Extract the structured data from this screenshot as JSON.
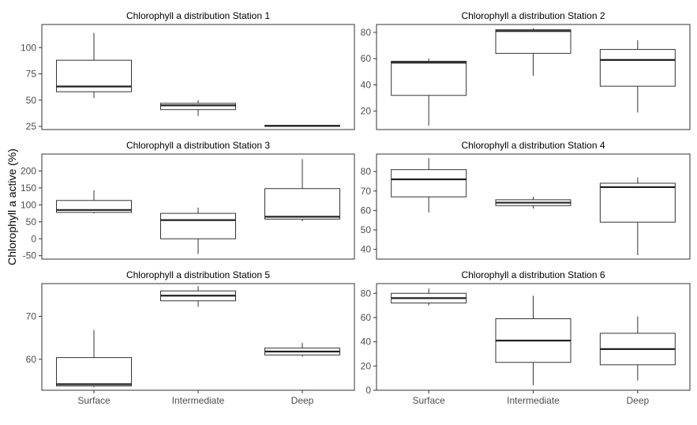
{
  "figure": {
    "ylabel": "Chlorophyll a active (%)",
    "categories": [
      "Surface",
      "Intermediate",
      "Deep"
    ]
  },
  "chart_data": [
    {
      "type": "box",
      "title": "Chlorophyll a distribution Station 1",
      "ylim": [
        22,
        122
      ],
      "yticks": [
        25,
        50,
        75,
        100
      ],
      "categories": [
        "Surface",
        "Intermediate",
        "Deep"
      ],
      "boxes": [
        {
          "category": "Surface",
          "min": 52,
          "q1": 58,
          "median": 63,
          "q3": 88,
          "max": 114
        },
        {
          "category": "Intermediate",
          "min": 35,
          "q1": 41,
          "median": 45,
          "q3": 47,
          "max": 50
        },
        {
          "category": "Deep",
          "min": 25,
          "q1": 25,
          "median": 25.5,
          "q3": 26,
          "max": 26
        }
      ]
    },
    {
      "type": "box",
      "title": "Chlorophyll a distribution Station 2",
      "ylim": [
        6,
        86
      ],
      "yticks": [
        20,
        40,
        60,
        80
      ],
      "categories": [
        "Surface",
        "Intermediate",
        "Deep"
      ],
      "boxes": [
        {
          "category": "Surface",
          "min": 9,
          "q1": 32,
          "median": 57,
          "q3": 58,
          "max": 60
        },
        {
          "category": "Intermediate",
          "min": 47,
          "q1": 64,
          "median": 81,
          "q3": 82,
          "max": 83
        },
        {
          "category": "Deep",
          "min": 19,
          "q1": 39,
          "median": 59,
          "q3": 67,
          "max": 74
        }
      ]
    },
    {
      "type": "box",
      "title": "Chlorophyll a distribution Station 3",
      "ylim": [
        -60,
        250
      ],
      "yticks": [
        -50,
        0,
        50,
        100,
        150,
        200
      ],
      "categories": [
        "Surface",
        "Intermediate",
        "Deep"
      ],
      "boxes": [
        {
          "category": "Surface",
          "min": 75,
          "q1": 78,
          "median": 85,
          "q3": 113,
          "max": 143
        },
        {
          "category": "Intermediate",
          "min": -45,
          "q1": 0,
          "median": 55,
          "q3": 75,
          "max": 92
        },
        {
          "category": "Deep",
          "min": 52,
          "q1": 58,
          "median": 65,
          "q3": 148,
          "max": 235
        }
      ]
    },
    {
      "type": "box",
      "title": "Chlorophyll a distribution Station 4",
      "ylim": [
        35,
        89
      ],
      "yticks": [
        40,
        50,
        60,
        70,
        80
      ],
      "categories": [
        "Surface",
        "Intermediate",
        "Deep"
      ],
      "boxes": [
        {
          "category": "Surface",
          "min": 59,
          "q1": 67,
          "median": 76,
          "q3": 81,
          "max": 87
        },
        {
          "category": "Intermediate",
          "min": 61,
          "q1": 62.5,
          "median": 64,
          "q3": 65.5,
          "max": 67
        },
        {
          "category": "Deep",
          "min": 37,
          "q1": 54,
          "median": 72,
          "q3": 74,
          "max": 77
        }
      ]
    },
    {
      "type": "box",
      "title": "Chlorophyll a distribution Station 5",
      "ylim": [
        52.8,
        77.6
      ],
      "yticks": [
        60,
        70
      ],
      "categories": [
        "Surface",
        "Intermediate",
        "Deep"
      ],
      "boxes": [
        {
          "category": "Surface",
          "min": 53.5,
          "q1": 53.8,
          "median": 54.2,
          "q3": 60.4,
          "max": 66.8
        },
        {
          "category": "Intermediate",
          "min": 72.2,
          "q1": 73.6,
          "median": 74.8,
          "q3": 75.9,
          "max": 77.0
        },
        {
          "category": "Deep",
          "min": 60.6,
          "q1": 61.0,
          "median": 61.8,
          "q3": 62.6,
          "max": 63.8
        }
      ]
    },
    {
      "type": "box",
      "title": "Chlorophyll a distribution Station 6",
      "ylim": [
        0,
        88
      ],
      "yticks": [
        0,
        20,
        40,
        60,
        80
      ],
      "categories": [
        "Surface",
        "Intermediate",
        "Deep"
      ],
      "boxes": [
        {
          "category": "Surface",
          "min": 70,
          "q1": 72,
          "median": 76,
          "q3": 80,
          "max": 84
        },
        {
          "category": "Intermediate",
          "min": 4,
          "q1": 23,
          "median": 41,
          "q3": 59,
          "max": 78
        },
        {
          "category": "Deep",
          "min": 8,
          "q1": 21,
          "median": 34,
          "q3": 47,
          "max": 61
        }
      ]
    }
  ]
}
